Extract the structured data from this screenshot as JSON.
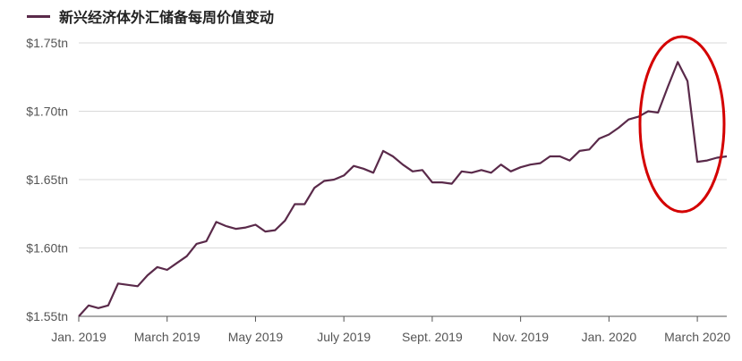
{
  "legend": {
    "label": "新兴经济体外汇储备每周价值变动"
  },
  "chart_data": {
    "type": "line",
    "series": [
      {
        "name": "新兴经济体外汇储备每周价值变动",
        "color": "#5a2a4a",
        "y": [
          1.55,
          1.558,
          1.556,
          1.558,
          1.574,
          1.573,
          1.572,
          1.58,
          1.586,
          1.584,
          1.589,
          1.594,
          1.603,
          1.605,
          1.619,
          1.616,
          1.614,
          1.615,
          1.617,
          1.612,
          1.613,
          1.62,
          1.632,
          1.632,
          1.644,
          1.649,
          1.65,
          1.653,
          1.66,
          1.658,
          1.655,
          1.671,
          1.667,
          1.661,
          1.656,
          1.657,
          1.648,
          1.648,
          1.647,
          1.656,
          1.655,
          1.657,
          1.655,
          1.661,
          1.656,
          1.659,
          1.661,
          1.662,
          1.667,
          1.667,
          1.664,
          1.671,
          1.672,
          1.68,
          1.683,
          1.688,
          1.694,
          1.696,
          1.7,
          1.699,
          1.718,
          1.736,
          1.722,
          1.663,
          1.664,
          1.666,
          1.667
        ]
      }
    ],
    "x_tick_labels": [
      "Jan. 2019",
      "March 2019",
      "May 2019",
      "July 2019",
      "Sept. 2019",
      "Nov. 2019",
      "Jan. 2020",
      "March 2020"
    ],
    "x_tick_index": [
      0,
      9,
      18,
      27,
      36,
      45,
      54,
      63
    ],
    "y_ticks": [
      1.55,
      1.6,
      1.65,
      1.7,
      1.75
    ],
    "y_tick_labels": [
      "$1.55tn",
      "$1.60tn",
      "$1.65tn",
      "$1.70tn",
      "$1.75tn"
    ],
    "ylim": [
      1.55,
      1.75
    ],
    "grid": true,
    "annotation": {
      "shape": "ellipse",
      "color": "#d40000",
      "highlight": "March 2020"
    }
  }
}
